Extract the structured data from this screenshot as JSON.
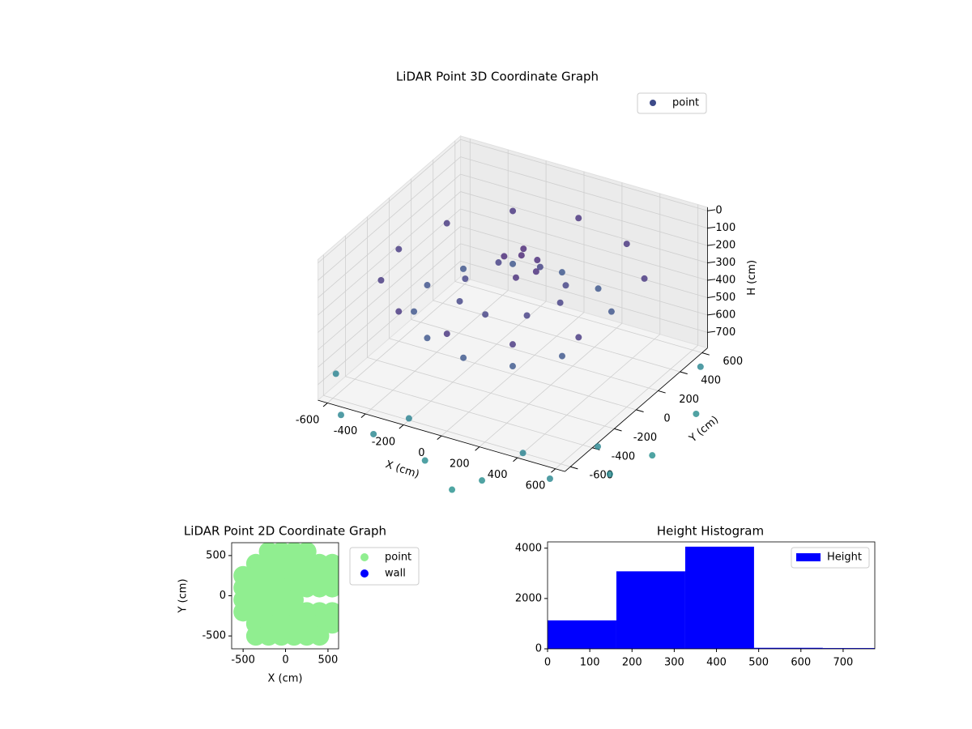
{
  "chart_data": [
    {
      "type": "scatter3d",
      "title": "LiDAR Point 3D Coordinate Graph",
      "xlabel": "X (cm)",
      "ylabel": "Y (cm)",
      "zlabel": "H (cm)",
      "series": [
        {
          "name": "point",
          "color": "#3d4a89",
          "x": [
            520,
            300,
            0,
            -300,
            -520,
            -600,
            -520,
            -300,
            0,
            300,
            520,
            390,
            225,
            0,
            -225,
            -390,
            -450,
            -390,
            -225,
            0,
            225,
            390,
            250,
            177,
            0,
            -177,
            -250,
            -177,
            0,
            177,
            0,
            60,
            -80,
            40,
            -30,
            100,
            -500,
            -300,
            0,
            300,
            600,
            800,
            850,
            850,
            700,
            -700,
            -200,
            400,
            650,
            200
          ],
          "y": [
            300,
            520,
            600,
            520,
            300,
            0,
            -300,
            -520,
            -600,
            -520,
            -300,
            225,
            390,
            450,
            390,
            225,
            0,
            -225,
            -390,
            -450,
            -390,
            -225,
            0,
            177,
            250,
            177,
            0,
            -177,
            -250,
            -177,
            80,
            120,
            60,
            -40,
            150,
            40,
            -700,
            -750,
            -800,
            -800,
            -700,
            -500,
            -200,
            200,
            500,
            -400,
            -600,
            -600,
            -350,
            -900
          ],
          "z": [
            240,
            230,
            220,
            230,
            250,
            260,
            250,
            240,
            230,
            240,
            250,
            430,
            440,
            450,
            440,
            430,
            420,
            430,
            440,
            450,
            460,
            440,
            300,
            320,
            310,
            300,
            320,
            330,
            310,
            300,
            150,
            180,
            170,
            200,
            160,
            190,
            800,
            820,
            850,
            870,
            820,
            840,
            880,
            860,
            800,
            790,
            780,
            790,
            810,
            900
          ]
        }
      ],
      "xlim": [
        -650,
        650
      ],
      "ylim": [
        -650,
        650
      ],
      "zlim": [
        -20,
        790
      ],
      "z_inverted": true,
      "xticks": [
        -600,
        -400,
        -200,
        0,
        200,
        400,
        600
      ],
      "yticks": [
        -600,
        -400,
        -200,
        0,
        200,
        400,
        600
      ],
      "zticks": [
        0,
        100,
        200,
        300,
        400,
        500,
        600,
        700
      ],
      "colormap": "viridis",
      "grid": true,
      "legend": "upper right"
    },
    {
      "type": "scatter",
      "title": "LiDAR Point 2D Coordinate Graph",
      "xlabel": "X (cm)",
      "ylabel": "Y (cm)",
      "series": [
        {
          "name": "point",
          "color": "#90ee90",
          "x": [
            -200,
            -50,
            100,
            250,
            -350,
            -200,
            -50,
            100,
            250,
            400,
            550,
            -500,
            -350,
            -200,
            -50,
            100,
            250,
            400,
            550,
            -500,
            -350,
            -200,
            -50,
            100,
            250,
            400,
            550,
            -500,
            -350,
            -200,
            -50,
            100,
            -500,
            -350,
            -200,
            -50,
            100,
            250,
            400,
            550,
            -350,
            -200,
            -50,
            100,
            250,
            400,
            550,
            -350,
            -200,
            -50,
            100,
            250,
            400
          ],
          "y": [
            550,
            550,
            550,
            550,
            400,
            400,
            400,
            400,
            400,
            400,
            400,
            250,
            250,
            250,
            250,
            250,
            250,
            250,
            250,
            100,
            100,
            100,
            100,
            100,
            100,
            100,
            100,
            -50,
            -50,
            -50,
            -50,
            -50,
            -200,
            -200,
            -200,
            -200,
            -200,
            -200,
            -200,
            -200,
            -350,
            -350,
            -350,
            -350,
            -350,
            -350,
            -350,
            -500,
            -500,
            -500,
            -500,
            -500,
            -500
          ]
        },
        {
          "name": "wall",
          "color": "#0000ff",
          "x": [],
          "y": []
        }
      ],
      "xlim": [
        -635,
        625
      ],
      "ylim": [
        -660,
        660
      ],
      "xticks": [
        -500,
        0,
        500
      ],
      "yticks": [
        -500,
        0,
        500
      ],
      "legend": "outside upper right"
    },
    {
      "type": "histogram",
      "title": "Height Histogram",
      "bins": [
        0,
        163,
        326,
        489,
        652,
        815
      ],
      "series": [
        {
          "name": "Height",
          "color": "#0000ff",
          "values": [
            1130,
            3080,
            4060,
            40,
            30
          ]
        }
      ],
      "xlim": [
        0,
        775
      ],
      "ylim": [
        0,
        4250
      ],
      "xticks": [
        0,
        100,
        200,
        300,
        400,
        500,
        600,
        700
      ],
      "yticks": [
        0,
        2000,
        4000
      ],
      "legend": "upper right"
    }
  ]
}
